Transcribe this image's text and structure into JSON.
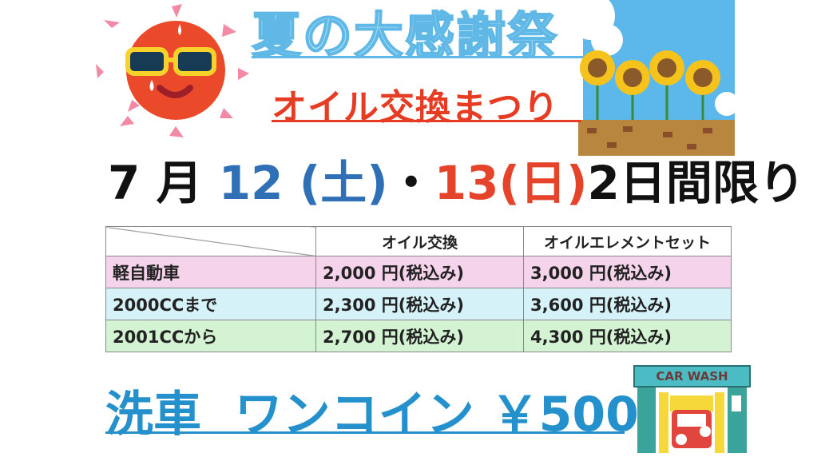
{
  "title": "夏の大感謝祭",
  "subtitle": "オイル交換まつり",
  "date": {
    "month": "7",
    "month_unit": "月",
    "day1": "12",
    "dow1": "(土)",
    "sep": "・",
    "day2": "13",
    "dow2": "(日)",
    "suffix": "2日間限り"
  },
  "table": {
    "headers": [
      "",
      "オイル交換",
      "オイルエレメントセット"
    ],
    "rows": [
      {
        "label": "軽自動車",
        "oil": "2,000 円(税込み)",
        "set": "3,000 円(税込み)"
      },
      {
        "label": "2000CCまで",
        "oil": "2,300 円(税込み)",
        "set": "3,600 円(税込み)"
      },
      {
        "label": "2001CCから",
        "oil": "2,700 円(税込み)",
        "set": "4,300 円(税込み)"
      }
    ]
  },
  "wash": {
    "label": "洗車",
    "offer": "ワンコイン",
    "price": "￥500",
    "sign": "CAR WASH"
  },
  "colors": {
    "title": "#a9e0f5",
    "subtitle": "#e63c23",
    "blue": "#2f6fb5",
    "red": "#e5432a",
    "wash": "#2591cc"
  }
}
